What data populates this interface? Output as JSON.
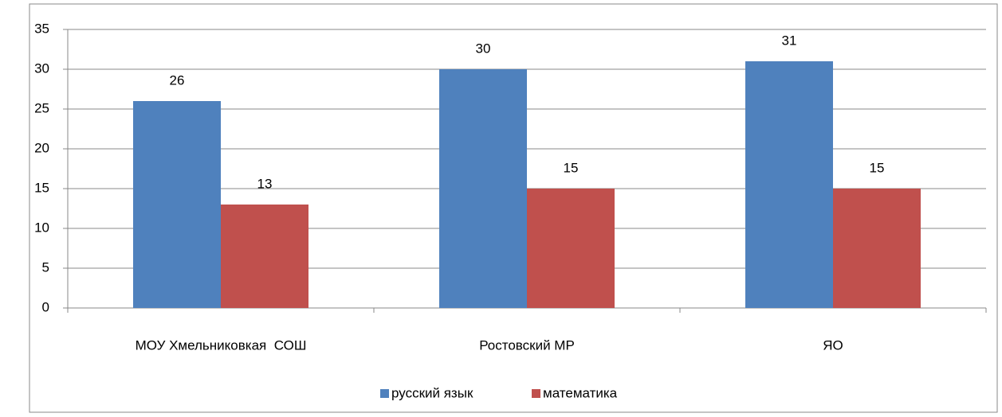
{
  "chart_data": {
    "type": "bar",
    "categories": [
      "МОУ Хмельниковкая  СОШ",
      "Ростовский МР",
      "ЯО"
    ],
    "series": [
      {
        "name": "русский язык",
        "color": "#4f81bd",
        "values": [
          26,
          30,
          31
        ]
      },
      {
        "name": "математика",
        "color": "#c0504d",
        "values": [
          13,
          15,
          15
        ]
      }
    ],
    "ylim": [
      0,
      35
    ],
    "yticks": [
      0,
      5,
      10,
      15,
      20,
      25,
      30,
      35
    ],
    "grid": true,
    "legend": "bottom"
  }
}
